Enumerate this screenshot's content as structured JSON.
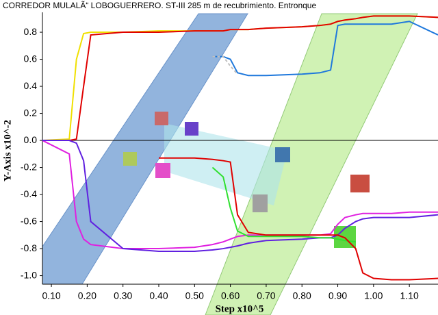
{
  "chart_data": {
    "type": "line",
    "title": "CORREDOR MULALÃ“ LOBOGUERRERO. ST-III 285 m de recubrimiento. Entronque",
    "x_label": "Step x10^5",
    "y_label": "Y-Axis x10^-2",
    "x": [
      0.075,
      0.15,
      0.17,
      0.19,
      0.21,
      0.3,
      0.4,
      0.5,
      0.55,
      0.58,
      0.6,
      0.62,
      0.65,
      0.7,
      0.8,
      0.85,
      0.88,
      0.9,
      0.92,
      0.95,
      0.97,
      1.0,
      1.05,
      1.1,
      1.18
    ],
    "series": [
      {
        "color": "#f0e000",
        "values": [
          0,
          0.01,
          0.6,
          0.79,
          0.8,
          0.8,
          0.81,
          0.81,
          0.81,
          0.81,
          0.82,
          0.82,
          0.82,
          0.83,
          0.84,
          0.85,
          0.86,
          0.88,
          0.89,
          0.9,
          0.91,
          0.92,
          0.92,
          0.92,
          0.91
        ]
      },
      {
        "color": "#e00000",
        "values": [
          0,
          0,
          0.01,
          0.4,
          0.78,
          0.8,
          0.8,
          0.81,
          0.81,
          0.81,
          0.82,
          0.82,
          0.82,
          0.83,
          0.84,
          0.85,
          0.86,
          0.88,
          0.89,
          0.9,
          0.91,
          0.92,
          0.92,
          0.92,
          0.91
        ]
      },
      {
        "color": "#1e78dc",
        "values": [
          null,
          null,
          null,
          null,
          null,
          null,
          null,
          null,
          0.62,
          0.62,
          0.6,
          0.5,
          0.48,
          0.48,
          0.49,
          0.5,
          0.52,
          0.85,
          0.86,
          0.86,
          0.86,
          0.86,
          0.86,
          0.88,
          0.78
        ]
      },
      {
        "color": "#c0c0c0",
        "dashed": true,
        "values": [
          null,
          null,
          null,
          null,
          null,
          null,
          null,
          null,
          0.62,
          0.62,
          0.55,
          0.49,
          null,
          null,
          null,
          null,
          null,
          null,
          null,
          null,
          null,
          null,
          null,
          null,
          null
        ]
      },
      {
        "color": "#e020e0",
        "values": [
          0,
          -0.1,
          -0.6,
          -0.73,
          -0.77,
          -0.8,
          -0.8,
          -0.79,
          -0.77,
          -0.75,
          -0.73,
          -0.71,
          -0.7,
          -0.7,
          -0.7,
          -0.7,
          -0.69,
          -0.62,
          -0.57,
          -0.55,
          -0.54,
          -0.54,
          -0.54,
          -0.53,
          -0.53
        ]
      },
      {
        "color": "#6020e0",
        "values": [
          0,
          0,
          -0.02,
          -0.15,
          -0.6,
          -0.8,
          -0.82,
          -0.82,
          -0.81,
          -0.8,
          -0.79,
          -0.78,
          -0.76,
          -0.74,
          -0.73,
          -0.72,
          -0.72,
          -0.7,
          -0.65,
          -0.6,
          -0.58,
          -0.57,
          -0.57,
          -0.57,
          -0.55
        ]
      },
      {
        "color": "#30e030",
        "values": [
          null,
          null,
          null,
          null,
          null,
          null,
          null,
          null,
          -0.2,
          -0.27,
          -0.5,
          -0.67,
          -0.71,
          -0.71,
          -0.71,
          -0.72,
          -0.72,
          -0.73,
          -0.74,
          -0.75,
          null,
          null,
          null,
          null,
          null
        ]
      },
      {
        "color": "#e00000",
        "values": [
          null,
          null,
          null,
          null,
          null,
          null,
          -0.13,
          -0.13,
          -0.14,
          -0.15,
          -0.16,
          -0.55,
          -0.68,
          -0.7,
          -0.7,
          -0.7,
          -0.7,
          -0.7,
          -0.72,
          -0.8,
          -0.98,
          -1.02,
          -1.03,
          -1.03,
          -1.02
        ]
      }
    ],
    "xlim": [
      0.075,
      1.18
    ],
    "ylim": [
      -1.063,
      0.937
    ],
    "xticks": [
      {
        "value": 0.1,
        "label": "0.10"
      },
      {
        "value": 0.2,
        "label": "0.20"
      },
      {
        "value": 0.3,
        "label": "0.30"
      },
      {
        "value": 0.4,
        "label": "0.40"
      },
      {
        "value": 0.5,
        "label": "0.50"
      },
      {
        "value": 0.6,
        "label": "0.60"
      },
      {
        "value": 0.7,
        "label": "0.70"
      },
      {
        "value": 0.8,
        "label": "0.80"
      },
      {
        "value": 0.9,
        "label": "0.90"
      },
      {
        "value": 1.0,
        "label": "1.00"
      },
      {
        "value": 1.1,
        "label": "1.10"
      }
    ],
    "yticks": [
      {
        "value": -1.0,
        "label": "-1.0"
      },
      {
        "value": -0.8,
        "label": "-0.8"
      },
      {
        "value": -0.6,
        "label": "-0.6"
      },
      {
        "value": -0.4,
        "label": "-0.4"
      },
      {
        "value": -0.2,
        "label": "-0.2"
      },
      {
        "value": 0,
        "label": "0.0"
      },
      {
        "value": 0.2,
        "label": "0.2"
      },
      {
        "value": 0.4,
        "label": "0.4"
      },
      {
        "value": 0.6,
        "label": "0.6"
      },
      {
        "value": 0.8,
        "label": "0.8"
      }
    ]
  }
}
